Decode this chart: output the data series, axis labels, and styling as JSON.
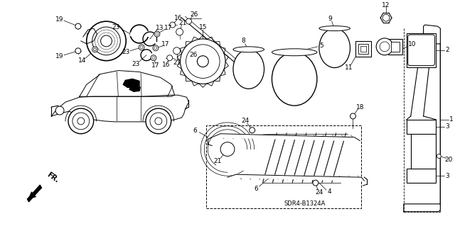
{
  "background_color": "#ffffff",
  "fig_width": 6.4,
  "fig_height": 3.19,
  "dpi": 100,
  "diagram_code": "SDR4-B1324A",
  "fr_label": "FR.",
  "line_color": "#000000",
  "text_color": "#000000",
  "part_fontsize": 6.5,
  "diagram_ref_fontsize": 6,
  "fr_fontsize": 7
}
